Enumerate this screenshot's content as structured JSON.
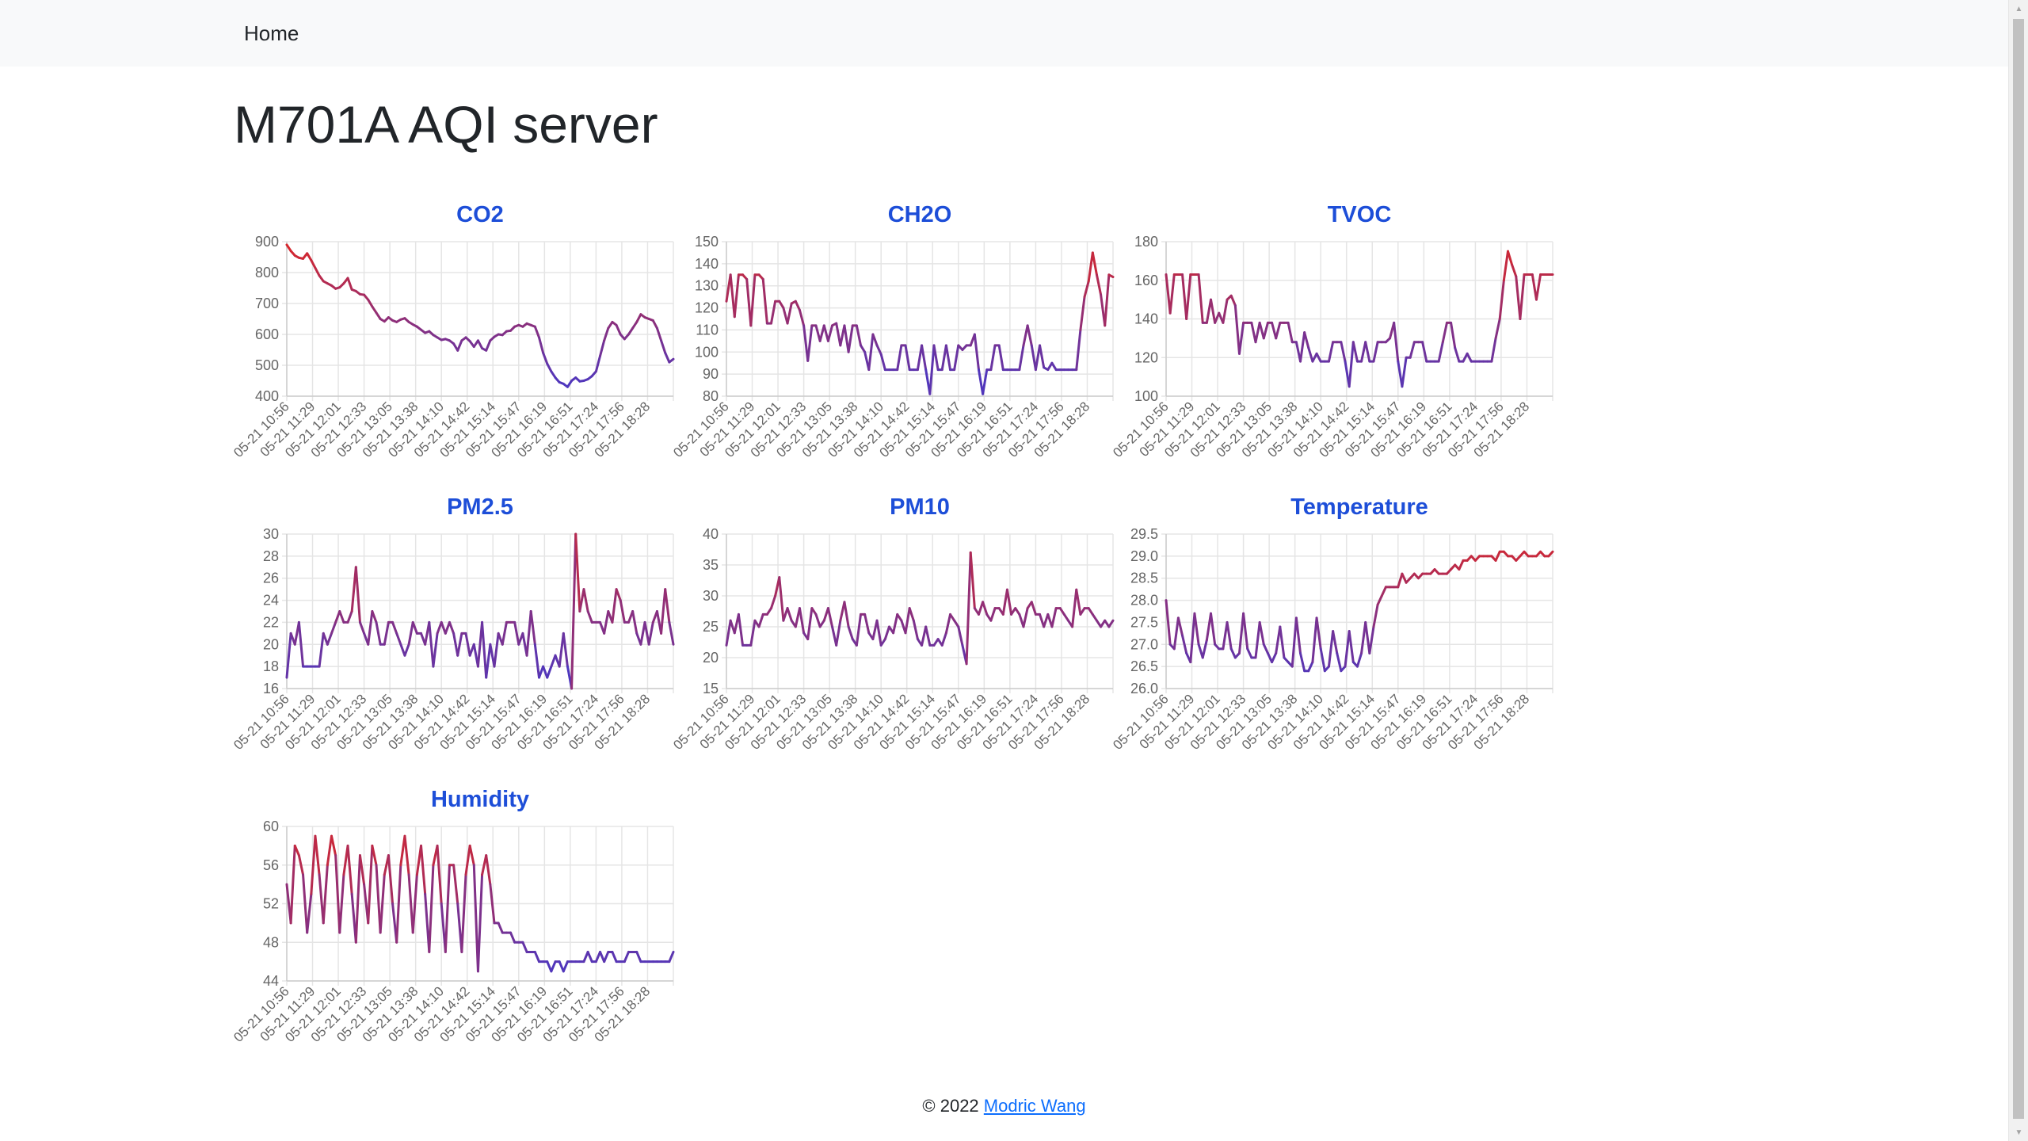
{
  "nav": {
    "home_label": "Home"
  },
  "page": {
    "title": "M701A AQI server"
  },
  "footer": {
    "copyright": "© 2022",
    "author_link": "Modric Wang"
  },
  "colors": {
    "chart_title": "#1d4ed8",
    "line_high": "#dc2626",
    "line_low": "#4338ca",
    "grid": "#e5e5e5",
    "tick_text": "#666666"
  },
  "chart_data": [
    {
      "type": "line",
      "title": "CO2",
      "xlabel": "",
      "ylabel": "",
      "ylim": [
        400,
        900
      ],
      "yticks": [
        "400",
        "500",
        "600",
        "700",
        "800",
        "900"
      ],
      "x_tick_labels": [
        "05-21 10:56",
        "05-21 11:29",
        "05-21 12:01",
        "05-21 12:33",
        "05-21 13:05",
        "05-21 13:38",
        "05-21 14:10",
        "05-21 14:42",
        "05-21 15:14",
        "05-21 15:47",
        "05-21 16:19",
        "05-21 16:51",
        "05-21 17:24",
        "05-21 17:56",
        "05-21 18:28"
      ],
      "grid": true,
      "values": [
        890,
        870,
        855,
        848,
        845,
        862,
        840,
        815,
        790,
        772,
        765,
        758,
        748,
        752,
        765,
        782,
        745,
        740,
        730,
        728,
        712,
        690,
        670,
        650,
        642,
        655,
        645,
        640,
        648,
        652,
        640,
        632,
        625,
        615,
        605,
        610,
        598,
        590,
        582,
        585,
        580,
        570,
        548,
        580,
        590,
        578,
        560,
        580,
        555,
        548,
        580,
        592,
        600,
        598,
        610,
        612,
        625,
        630,
        625,
        635,
        630,
        625,
        590,
        540,
        505,
        480,
        460,
        445,
        440,
        430,
        450,
        460,
        448,
        450,
        455,
        465,
        480,
        530,
        580,
        620,
        640,
        630,
        600,
        585,
        600,
        620,
        640,
        665,
        655,
        650,
        645,
        620,
        580,
        540,
        510,
        520
      ]
    },
    {
      "type": "line",
      "title": "CH2O",
      "xlabel": "",
      "ylabel": "",
      "ylim": [
        80,
        150
      ],
      "yticks": [
        "80",
        "90",
        "100",
        "110",
        "120",
        "130",
        "140",
        "150"
      ],
      "x_tick_labels": [
        "05-21 10:56",
        "05-21 11:29",
        "05-21 12:01",
        "05-21 12:33",
        "05-21 13:05",
        "05-21 13:38",
        "05-21 14:10",
        "05-21 14:42",
        "05-21 15:14",
        "05-21 15:47",
        "05-21 16:19",
        "05-21 16:51",
        "05-21 17:24",
        "05-21 17:56",
        "05-21 18:28"
      ],
      "grid": true,
      "values": [
        123,
        135,
        116,
        135,
        135,
        133,
        112,
        135,
        135,
        133,
        113,
        113,
        123,
        123,
        120,
        113,
        122,
        123,
        119,
        112,
        96,
        112,
        112,
        105,
        112,
        105,
        112,
        113,
        103,
        112,
        100,
        112,
        112,
        103,
        100,
        92,
        108,
        103,
        99,
        92,
        92,
        92,
        92,
        103,
        103,
        92,
        92,
        92,
        103,
        92,
        81,
        103,
        92,
        92,
        103,
        92,
        92,
        103,
        101,
        103,
        103,
        108,
        92,
        81,
        92,
        92,
        103,
        103,
        92,
        92,
        92,
        92,
        92,
        103,
        112,
        103,
        92,
        103,
        93,
        92,
        95,
        92,
        92,
        92,
        92,
        92,
        92,
        110,
        125,
        132,
        145,
        135,
        126,
        112,
        135,
        134
      ]
    },
    {
      "type": "line",
      "title": "TVOC",
      "xlabel": "",
      "ylabel": "",
      "ylim": [
        100,
        180
      ],
      "yticks": [
        "100",
        "120",
        "140",
        "160",
        "180"
      ],
      "x_tick_labels": [
        "05-21 10:56",
        "05-21 11:29",
        "05-21 12:01",
        "05-21 12:33",
        "05-21 13:05",
        "05-21 13:38",
        "05-21 14:10",
        "05-21 14:42",
        "05-21 15:14",
        "05-21 15:47",
        "05-21 16:19",
        "05-21 16:51",
        "05-21 17:24",
        "05-21 17:56",
        "05-21 18:28"
      ],
      "grid": true,
      "values": [
        163,
        143,
        163,
        163,
        163,
        140,
        163,
        163,
        163,
        138,
        138,
        150,
        138,
        143,
        138,
        150,
        152,
        147,
        122,
        138,
        138,
        138,
        128,
        138,
        130,
        138,
        138,
        130,
        138,
        138,
        138,
        128,
        128,
        118,
        133,
        125,
        118,
        122,
        118,
        118,
        118,
        128,
        128,
        128,
        118,
        105,
        128,
        118,
        118,
        128,
        118,
        118,
        128,
        128,
        128,
        130,
        138,
        118,
        105,
        120,
        120,
        128,
        128,
        128,
        118,
        118,
        118,
        118,
        128,
        138,
        138,
        125,
        118,
        118,
        122,
        118,
        118,
        118,
        118,
        118,
        118,
        130,
        140,
        160,
        175,
        168,
        162,
        140,
        163,
        163,
        163,
        150,
        163,
        163,
        163,
        163
      ]
    },
    {
      "type": "line",
      "title": "PM2.5",
      "xlabel": "",
      "ylabel": "",
      "ylim": [
        16,
        30
      ],
      "yticks": [
        "16",
        "18",
        "20",
        "22",
        "24",
        "26",
        "28",
        "30"
      ],
      "x_tick_labels": [
        "05-21 10:56",
        "05-21 11:29",
        "05-21 12:01",
        "05-21 12:33",
        "05-21 13:05",
        "05-21 13:38",
        "05-21 14:10",
        "05-21 14:42",
        "05-21 15:14",
        "05-21 15:47",
        "05-21 16:19",
        "05-21 16:51",
        "05-21 17:24",
        "05-21 17:56",
        "05-21 18:28"
      ],
      "grid": true,
      "values": [
        17,
        21,
        20,
        22,
        18,
        18,
        18,
        18,
        18,
        21,
        20,
        21,
        22,
        23,
        22,
        22,
        23,
        27,
        22,
        21,
        20,
        23,
        22,
        20,
        20,
        22,
        22,
        21,
        20,
        19,
        20,
        22,
        21,
        21,
        20,
        22,
        18,
        21,
        22,
        21,
        22,
        21,
        19,
        21,
        21,
        19,
        20,
        18,
        22,
        17,
        20,
        18,
        21,
        20,
        22,
        22,
        22,
        20,
        21,
        19,
        23,
        20,
        17,
        18,
        17,
        18,
        19,
        18,
        21,
        18,
        16,
        30,
        23,
        25,
        23,
        22,
        22,
        22,
        21,
        23,
        22,
        25,
        24,
        22,
        22,
        23,
        21,
        20,
        22,
        20,
        22,
        23,
        21,
        25,
        22,
        20
      ]
    },
    {
      "type": "line",
      "title": "PM10",
      "xlabel": "",
      "ylabel": "",
      "ylim": [
        15,
        40
      ],
      "yticks": [
        "15",
        "20",
        "25",
        "30",
        "35",
        "40"
      ],
      "x_tick_labels": [
        "05-21 10:56",
        "05-21 11:29",
        "05-21 12:01",
        "05-21 12:33",
        "05-21 13:05",
        "05-21 13:38",
        "05-21 14:10",
        "05-21 14:42",
        "05-21 15:14",
        "05-21 15:47",
        "05-21 16:19",
        "05-21 16:51",
        "05-21 17:24",
        "05-21 17:56",
        "05-21 18:28"
      ],
      "grid": true,
      "values": [
        22,
        26,
        24,
        27,
        22,
        22,
        22,
        26,
        25,
        27,
        27,
        28,
        30,
        33,
        26,
        28,
        26,
        25,
        28,
        24,
        23,
        28,
        27,
        25,
        26,
        28,
        25,
        22,
        26,
        29,
        25,
        23,
        22,
        27,
        27,
        24,
        23,
        26,
        22,
        23,
        25,
        24,
        27,
        26,
        24,
        28,
        26,
        23,
        22,
        25,
        22,
        22,
        23,
        22,
        24,
        27,
        26,
        25,
        22,
        19,
        37,
        28,
        27,
        29,
        27,
        26,
        28,
        28,
        27,
        31,
        27,
        28,
        27,
        25,
        28,
        29,
        27,
        27,
        25,
        27,
        25,
        28,
        28,
        27,
        26,
        25,
        31,
        27,
        28,
        28,
        27,
        26,
        25,
        26,
        25,
        26
      ]
    },
    {
      "type": "line",
      "title": "Temperature",
      "xlabel": "",
      "ylabel": "",
      "ylim": [
        26.0,
        29.5
      ],
      "yticks": [
        "26.0",
        "26.5",
        "27.0",
        "27.5",
        "28.0",
        "28.5",
        "29.0",
        "29.5"
      ],
      "x_tick_labels": [
        "05-21 10:56",
        "05-21 11:29",
        "05-21 12:01",
        "05-21 12:33",
        "05-21 13:05",
        "05-21 13:38",
        "05-21 14:10",
        "05-21 14:42",
        "05-21 15:14",
        "05-21 15:47",
        "05-21 16:19",
        "05-21 16:51",
        "05-21 17:24",
        "05-21 17:56",
        "05-21 18:28"
      ],
      "grid": true,
      "values": [
        28.0,
        27.0,
        26.9,
        27.6,
        27.2,
        26.8,
        26.6,
        27.7,
        27.0,
        26.7,
        27.1,
        27.7,
        27.0,
        26.9,
        26.9,
        27.5,
        26.9,
        26.7,
        26.8,
        27.7,
        26.9,
        26.7,
        26.7,
        27.5,
        27.0,
        26.8,
        26.6,
        26.8,
        27.4,
        26.7,
        26.6,
        26.5,
        27.6,
        26.8,
        26.4,
        26.4,
        26.6,
        27.6,
        26.9,
        26.4,
        26.5,
        27.3,
        26.8,
        26.4,
        26.5,
        27.3,
        26.6,
        26.5,
        26.8,
        27.5,
        26.8,
        27.4,
        27.9,
        28.1,
        28.3,
        28.3,
        28.3,
        28.3,
        28.6,
        28.4,
        28.5,
        28.6,
        28.5,
        28.6,
        28.6,
        28.6,
        28.7,
        28.6,
        28.6,
        28.6,
        28.7,
        28.8,
        28.7,
        28.9,
        28.9,
        29.0,
        28.9,
        29.0,
        29.0,
        29.0,
        29.0,
        28.9,
        29.1,
        29.1,
        29.0,
        29.0,
        28.9,
        29.0,
        29.1,
        29.0,
        29.0,
        29.0,
        29.1,
        29.0,
        29.0,
        29.1
      ]
    },
    {
      "type": "line",
      "title": "Humidity",
      "xlabel": "",
      "ylabel": "",
      "ylim": [
        44,
        60
      ],
      "yticks": [
        "44",
        "48",
        "52",
        "56",
        "60"
      ],
      "x_tick_labels": [
        "05-21 10:56",
        "05-21 11:29",
        "05-21 12:01",
        "05-21 12:33",
        "05-21 13:05",
        "05-21 13:38",
        "05-21 14:10",
        "05-21 14:42",
        "05-21 15:14",
        "05-21 15:47",
        "05-21 16:19",
        "05-21 16:51",
        "05-21 17:24",
        "05-21 17:56",
        "05-21 18:28"
      ],
      "grid": true,
      "values": [
        54,
        50,
        58,
        57,
        55,
        49,
        53,
        59,
        55,
        50,
        56,
        59,
        57,
        49,
        55,
        58,
        53,
        48,
        57,
        54,
        50,
        58,
        56,
        49,
        55,
        57,
        52,
        48,
        56,
        59,
        55,
        49,
        55,
        58,
        53,
        47,
        56,
        58,
        52,
        47,
        56,
        56,
        52,
        47,
        55,
        58,
        56,
        45,
        55,
        57,
        54,
        50,
        50,
        49,
        49,
        49,
        48,
        48,
        48,
        47,
        47,
        47,
        46,
        46,
        46,
        45,
        46,
        46,
        45,
        46,
        46,
        46,
        46,
        46,
        47,
        46,
        46,
        47,
        46,
        47,
        47,
        46,
        46,
        46,
        47,
        47,
        47,
        46,
        46,
        46,
        46,
        46,
        46,
        46,
        46,
        47
      ]
    }
  ]
}
